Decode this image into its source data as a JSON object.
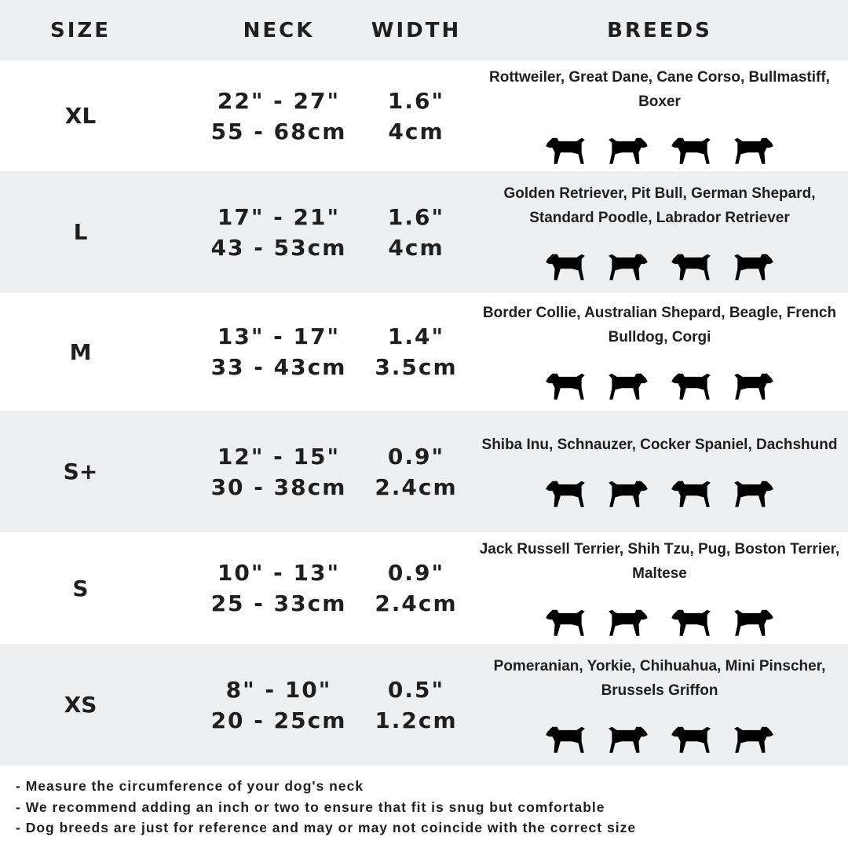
{
  "header": {
    "size": "SIZE",
    "neck": "NECK",
    "width": "WIDTH",
    "breeds": "BREEDS"
  },
  "rows": [
    {
      "size": "XL",
      "neck_in": "22\" - 27\"",
      "neck_cm": "55 - 68cm",
      "width_in": "1.6\"",
      "width_cm": "4cm",
      "breeds_text": "Rottweiler, Great Dane, Cane Corso, Bullmastiff, Boxer",
      "icons": [
        "rottweiler-icon",
        "great-dane-icon",
        "doberman-icon",
        "bullmastiff-icon"
      ]
    },
    {
      "size": "L",
      "neck_in": "17\" - 21\"",
      "neck_cm": "43 - 53cm",
      "width_in": "1.6\"",
      "width_cm": "4cm",
      "breeds_text": "Golden Retriever, Pit Bull, German Shepard, Standard Poodle, Labrador Retriever",
      "icons": [
        "golden-retriever-icon",
        "labrador-icon",
        "poodle-icon",
        "german-shepard-icon"
      ]
    },
    {
      "size": "M",
      "neck_in": "13\" - 17\"",
      "neck_cm": "33 - 43cm",
      "width_in": "1.4\"",
      "width_cm": "3.5cm",
      "breeds_text": "Border Collie, Australian Shepard, Beagle, French Bulldog, Corgi",
      "icons": [
        "border-collie-icon",
        "beagle-icon",
        "french-bulldog-icon",
        "corgi-icon"
      ]
    },
    {
      "size": "S+",
      "neck_in": "12\" - 15\"",
      "neck_cm": "30 - 38cm",
      "width_in": "0.9\"",
      "width_cm": "2.4cm",
      "breeds_text": "Shiba Inu, Schnauzer, Cocker Spaniel, Dachshund",
      "icons": [
        "shiba-inu-icon",
        "schnauzer-icon",
        "cocker-spaniel-icon",
        "dachshund-icon"
      ]
    },
    {
      "size": "S",
      "neck_in": "10\" - 13\"",
      "neck_cm": "25 - 33cm",
      "width_in": "0.9\"",
      "width_cm": "2.4cm",
      "breeds_text": "Jack Russell Terrier, Shih Tzu, Pug, Boston Terrier, Maltese",
      "icons": [
        "jack-russell-icon",
        "shih-tzu-icon",
        "pug-icon",
        "maltese-icon"
      ]
    },
    {
      "size": "XS",
      "neck_in": "8\" - 10\"",
      "neck_cm": "20 - 25cm",
      "width_in": "0.5\"",
      "width_cm": "1.2cm",
      "breeds_text": "Pomeranian, Yorkie, Chihuahua, Mini Pinscher, Brussels Griffon",
      "icons": [
        "pomeranian-icon",
        "yorkie-icon",
        "chihuahua-icon",
        "mini-pinscher-icon"
      ]
    }
  ],
  "notes": [
    "- Measure the circumference of your dog's neck",
    "- We recommend adding an inch or two to ensure that fit is snug but comfortable",
    "- Dog breeds are just for reference and may or may not coincide with the correct size"
  ],
  "colors": {
    "stripe": "#eeeff1",
    "text": "#1f1f1f",
    "silhouette": "#000000"
  }
}
